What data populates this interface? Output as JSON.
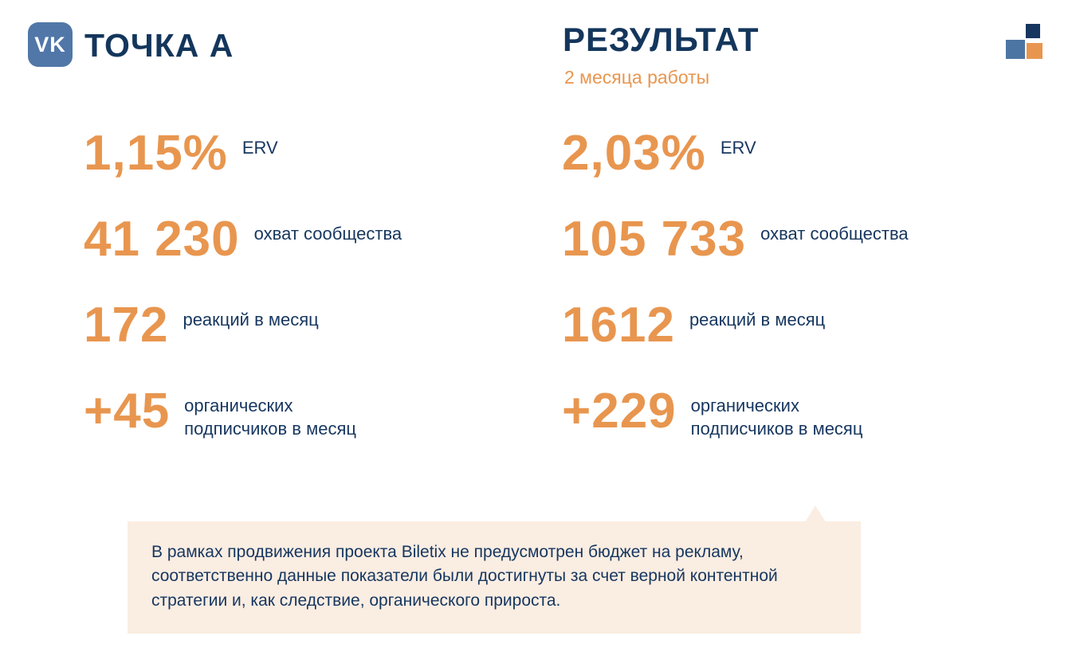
{
  "header": {
    "vk_logo_text": "VK",
    "left_title": "ТОЧКА А",
    "right_title": "РЕЗУЛЬТАТ",
    "right_subtitle": "2 месяца работы"
  },
  "colors": {
    "accent_orange": "#E8964F",
    "navy": "#16365F",
    "vk_blue": "#5077A8",
    "note_background": "#FAEDE2"
  },
  "metrics": {
    "point_a": [
      {
        "value": "1,15%",
        "label": "ERV"
      },
      {
        "value": "41 230",
        "label": "охват сообщества"
      },
      {
        "value": "172",
        "label": "реакций в месяц"
      },
      {
        "value": "+45",
        "label": "органических подписчиков в месяц"
      }
    ],
    "result": [
      {
        "value": "2,03%",
        "label": "ERV"
      },
      {
        "value": "105 733",
        "label": "охват сообщества"
      },
      {
        "value": "1612",
        "label": "реакций в месяц"
      },
      {
        "value": "+229",
        "label": "органических подписчиков в месяц"
      }
    ]
  },
  "note": {
    "text": "В рамках продвижения проекта Biletix не предусмотрен бюджет на рекламу, соответственно данные показатели были достигнуты за счет верной контентной стратегии и, как следствие, органического прироста."
  }
}
